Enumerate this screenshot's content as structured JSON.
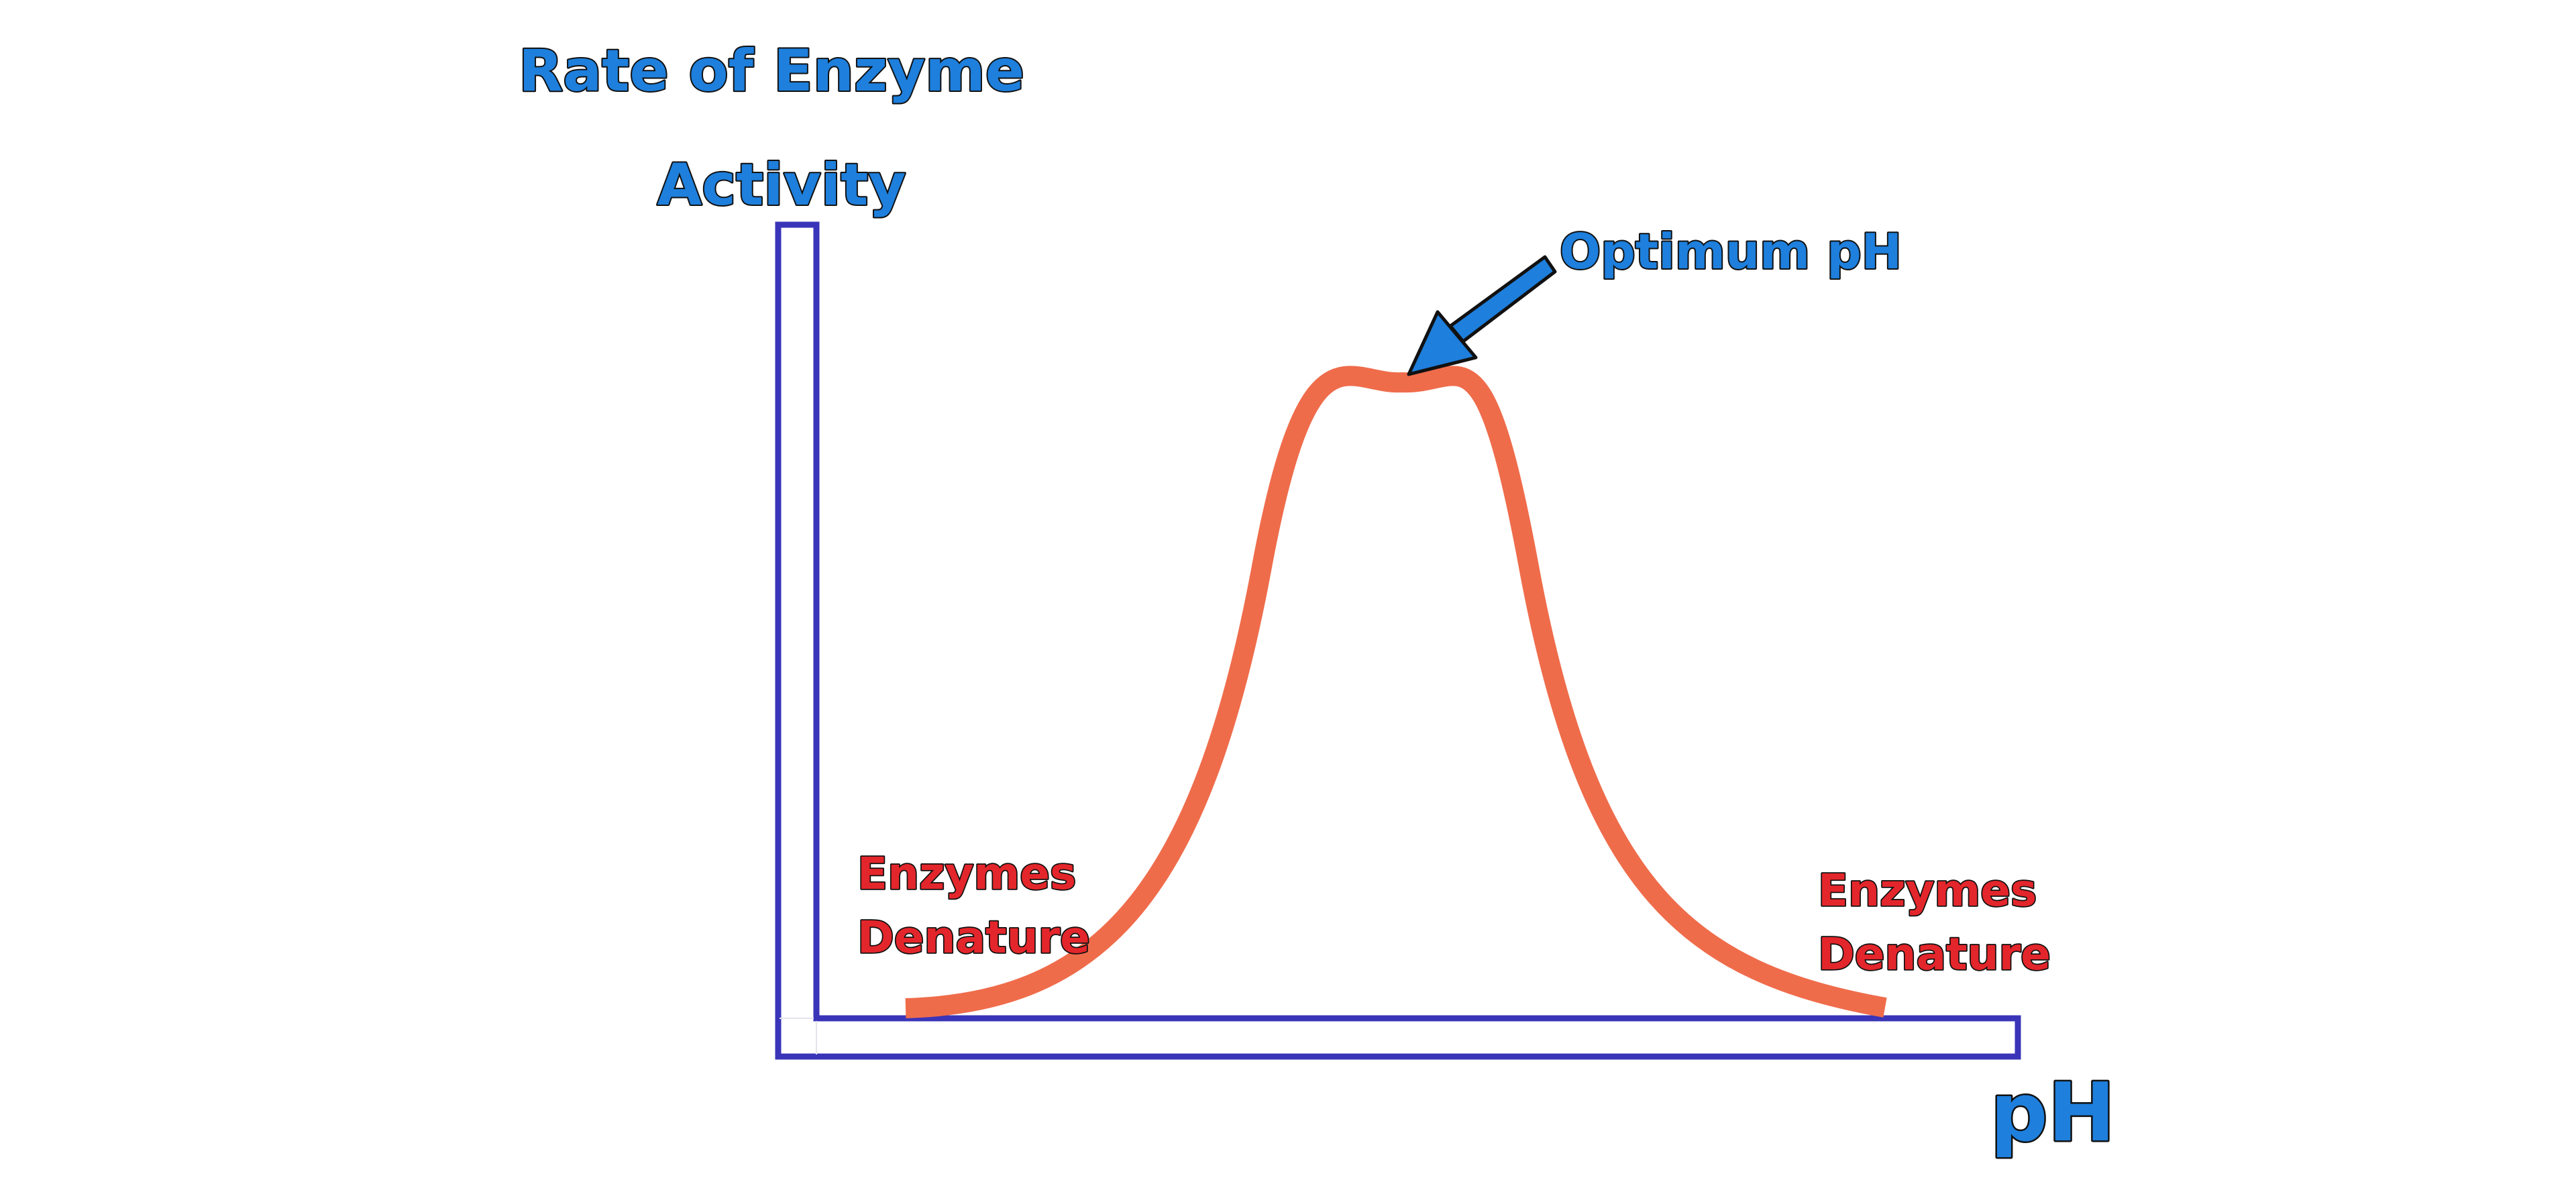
{
  "diagram": {
    "y_axis_label_lines": [
      "Rate of Enzyme",
      "Activity"
    ],
    "x_axis_label": "pH",
    "peak_annotation": "Optimum pH",
    "left_annotation_lines": [
      "Enzymes",
      "Denature"
    ],
    "right_annotation_lines": [
      "Enzymes",
      "Denature"
    ],
    "colors": {
      "axis_stroke": "#3a34b8",
      "curve": "#ef6c4b",
      "label_blue": "#1e7fdc",
      "label_red": "#e3262b",
      "arrow": "#1e7fdc"
    }
  }
}
